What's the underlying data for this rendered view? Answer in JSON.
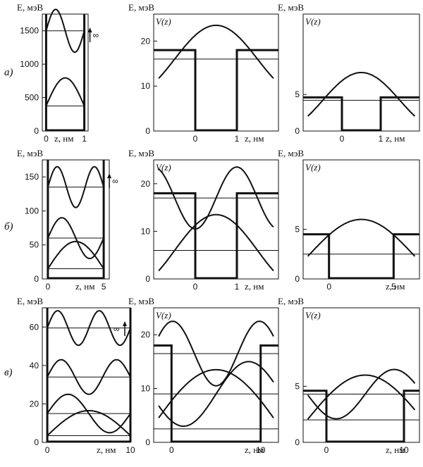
{
  "row_labels": [
    "а)",
    "б)",
    "в)"
  ],
  "energy_axis_label": "E, мэВ",
  "potential_label": "V(z)",
  "z_axis_label": "z, нм",
  "infinity_symbol": "∞",
  "chart_data": [
    {
      "type": "line",
      "panel": "a-infinite-well",
      "ylabel": "E, мэВ",
      "xlabel": "z, нм",
      "ylim": [
        0,
        1750
      ],
      "xlim": [
        -0.1,
        1.1
      ],
      "yticks": [
        0,
        500,
        1000,
        1500
      ],
      "xticks": [
        0,
        1
      ],
      "well": {
        "type": "infinite",
        "z_left": 0,
        "z_right": 1
      },
      "levels": [
        375,
        1500
      ],
      "wavefunctions": [
        {
          "n": 1,
          "level": 375,
          "amplitude": 420
        },
        {
          "n": 2,
          "level": 1500,
          "amplitude": 320
        }
      ]
    },
    {
      "type": "line",
      "panel": "a-finite-well",
      "ylabel": "E, мэВ",
      "xlabel": "z, нм",
      "potential": "V(z)",
      "ylim": [
        0,
        26
      ],
      "xlim": [
        -1.0,
        2.0
      ],
      "yticks": [
        0,
        10,
        20
      ],
      "xticks": [
        0,
        1
      ],
      "well": {
        "type": "finite",
        "z_left": 0,
        "z_right": 1,
        "V0": 18
      },
      "levels": [
        16
      ],
      "wavefunctions": [
        {
          "n": 1,
          "level": 16,
          "amplitude": 7.5
        }
      ]
    },
    {
      "type": "line",
      "panel": "a-finite-well-low",
      "ylabel": "E, мэВ",
      "xlabel": "z, нм",
      "potential": "V(z)",
      "ylim": [
        0,
        16
      ],
      "xlim": [
        -1.0,
        2.0
      ],
      "yticks": [
        0,
        5
      ],
      "xticks": [
        0,
        1
      ],
      "well": {
        "type": "finite",
        "z_left": 0,
        "z_right": 1,
        "V0": 4.6
      },
      "levels": [
        4.2
      ],
      "wavefunctions": [
        {
          "n": 1,
          "level": 4.2,
          "amplitude": 3.8
        }
      ]
    },
    {
      "type": "line",
      "panel": "b-infinite-well",
      "ylabel": "E, мэВ",
      "xlabel": "z, нм",
      "ylim": [
        0,
        175
      ],
      "xlim": [
        -0.5,
        5.5
      ],
      "yticks": [
        0,
        50,
        100,
        150
      ],
      "xticks": [
        0,
        5
      ],
      "well": {
        "type": "infinite",
        "z_left": 0,
        "z_right": 5
      },
      "levels": [
        15,
        60,
        135
      ],
      "wavefunctions": [
        {
          "n": 1,
          "level": 15,
          "amplitude": 40
        },
        {
          "n": 2,
          "level": 60,
          "amplitude": 30
        },
        {
          "n": 3,
          "level": 135,
          "amplitude": 30
        }
      ]
    },
    {
      "type": "line",
      "panel": "b-finite-well",
      "ylabel": "E, мэВ",
      "xlabel": "z, нм",
      "potential": "V(z)",
      "ylim": [
        0,
        25
      ],
      "xlim": [
        -1.0,
        2.0
      ],
      "yticks": [
        0,
        10,
        20
      ],
      "xticks": [
        0,
        1
      ],
      "well": {
        "type": "finite",
        "z_left": 0,
        "z_right": 1,
        "V0": 18
      },
      "levels": [
        6,
        17
      ],
      "wavefunctions": [
        {
          "n": 1,
          "level": 6,
          "amplitude": 7.5
        },
        {
          "n": 2,
          "level": 17,
          "amplitude": 6.5
        }
      ]
    },
    {
      "type": "line",
      "panel": "b-finite-well-low",
      "ylabel": "E, мэВ",
      "xlabel": "z, нм",
      "potential": "V(z)",
      "ylim": [
        0,
        12
      ],
      "xlim": [
        -2.0,
        7.0
      ],
      "yticks": [
        0,
        5
      ],
      "xticks": [
        0,
        5
      ],
      "well": {
        "type": "finite",
        "z_left": 0,
        "z_right": 5,
        "V0": 4.5
      },
      "levels": [
        2.5
      ],
      "wavefunctions": [
        {
          "n": 1,
          "level": 2.5,
          "amplitude": 3.5
        }
      ]
    },
    {
      "type": "line",
      "panel": "c-infinite-well",
      "ylabel": "E, мэВ",
      "xlabel": "z, нм",
      "ylim": [
        0,
        70
      ],
      "xlim": [
        -0.6,
        10.0
      ],
      "yticks": [
        0,
        20,
        40,
        60
      ],
      "xticks": [
        0,
        10
      ],
      "well": {
        "type": "infinite",
        "z_left": 0,
        "z_right": 10
      },
      "levels": [
        3.5,
        15,
        34,
        59.5
      ],
      "wavefunctions": [
        {
          "n": 1,
          "level": 3.5,
          "amplitude": 13
        },
        {
          "n": 2,
          "level": 15,
          "amplitude": 10
        },
        {
          "n": 3,
          "level": 34,
          "amplitude": 9
        },
        {
          "n": 4,
          "level": 59.5,
          "amplitude": 9
        }
      ]
    },
    {
      "type": "line",
      "panel": "c-finite-well",
      "ylabel": "E, мэВ",
      "xlabel": "z, нм",
      "potential": "V(z)",
      "ylim": [
        0,
        25
      ],
      "xlim": [
        -2.0,
        12.0
      ],
      "yticks": [
        0,
        10,
        20
      ],
      "xticks": [
        0,
        10
      ],
      "well": {
        "type": "finite",
        "z_left": 0,
        "z_right": 10,
        "V0": 18
      },
      "levels": [
        2.5,
        9,
        16.5
      ],
      "wavefunctions": [
        {
          "n": 1,
          "level": 2.5,
          "amplitude": 11
        },
        {
          "n": 2,
          "level": 9,
          "amplitude": 6
        },
        {
          "n": 3,
          "level": 16.5,
          "amplitude": 6
        }
      ]
    },
    {
      "type": "line",
      "panel": "c-finite-well-low",
      "ylabel": "E, мэВ",
      "xlabel": "z, нм",
      "potential": "V(z)",
      "ylim": [
        0,
        12
      ],
      "xlim": [
        -3.0,
        12.0
      ],
      "yticks": [
        0,
        5
      ],
      "xticks": [
        0,
        10
      ],
      "well": {
        "type": "finite",
        "z_left": 0,
        "z_right": 10,
        "V0": 4.6
      },
      "levels": [
        2,
        4.3
      ],
      "wavefunctions": [
        {
          "n": 1,
          "level": 2,
          "amplitude": 4
        },
        {
          "n": 2,
          "level": 4.3,
          "amplitude": 2.2
        }
      ]
    }
  ]
}
